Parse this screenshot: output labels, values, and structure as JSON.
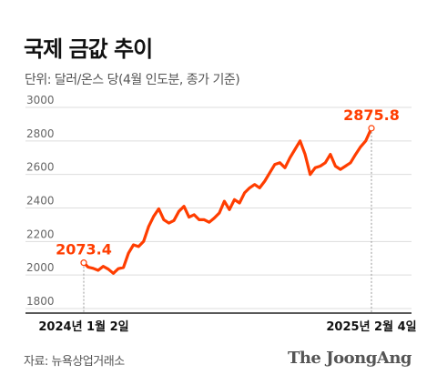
{
  "header": {
    "title": "국제 금값 추이",
    "subtitle": "단위: 달러/온스 당(4월 인도분, 종가 기준)"
  },
  "footer": {
    "source": "자료: 뉴욕상업거래소",
    "brand": "The JoongAng"
  },
  "colors": {
    "line": "#ff3d00",
    "label": "#ff3d00",
    "grid": "#dddddd",
    "axis": "#666666"
  },
  "chart_data": {
    "type": "line",
    "title": "국제 금값 추이",
    "ylim": [
      1800,
      3000
    ],
    "yticks": [
      3000,
      2800,
      2600,
      2400,
      2200,
      2000,
      1800
    ],
    "xlabels": [
      "2024년 1월 2일",
      "2025년 2월 4일"
    ],
    "annotations": [
      {
        "label": "2073.4",
        "date": "2024-01-02",
        "value": 2073.4
      },
      {
        "label": "2875.8",
        "date": "2025-02-04",
        "value": 2875.8
      }
    ],
    "series": [
      {
        "points": [
          [
            "2024-01-02",
            2073.4
          ],
          [
            "2024-01-08",
            2047
          ],
          [
            "2024-01-15",
            2040
          ],
          [
            "2024-01-22",
            2028
          ],
          [
            "2024-01-29",
            2052
          ],
          [
            "2024-02-05",
            2035
          ],
          [
            "2024-02-12",
            2010
          ],
          [
            "2024-02-19",
            2038
          ],
          [
            "2024-02-26",
            2045
          ],
          [
            "2024-03-04",
            2130
          ],
          [
            "2024-03-11",
            2180
          ],
          [
            "2024-03-18",
            2170
          ],
          [
            "2024-03-25",
            2200
          ],
          [
            "2024-04-01",
            2290
          ],
          [
            "2024-04-08",
            2350
          ],
          [
            "2024-04-15",
            2395
          ],
          [
            "2024-04-22",
            2330
          ],
          [
            "2024-04-29",
            2310
          ],
          [
            "2024-05-06",
            2325
          ],
          [
            "2024-05-13",
            2380
          ],
          [
            "2024-05-20",
            2410
          ],
          [
            "2024-05-27",
            2345
          ],
          [
            "2024-06-03",
            2360
          ],
          [
            "2024-06-10",
            2330
          ],
          [
            "2024-06-17",
            2330
          ],
          [
            "2024-06-24",
            2315
          ],
          [
            "2024-07-01",
            2340
          ],
          [
            "2024-07-08",
            2370
          ],
          [
            "2024-07-15",
            2440
          ],
          [
            "2024-07-22",
            2390
          ],
          [
            "2024-07-29",
            2450
          ],
          [
            "2024-08-05",
            2430
          ],
          [
            "2024-08-12",
            2490
          ],
          [
            "2024-08-19",
            2520
          ],
          [
            "2024-08-26",
            2540
          ],
          [
            "2024-09-02",
            2520
          ],
          [
            "2024-09-09",
            2560
          ],
          [
            "2024-09-16",
            2610
          ],
          [
            "2024-09-23",
            2660
          ],
          [
            "2024-09-30",
            2670
          ],
          [
            "2024-10-07",
            2640
          ],
          [
            "2024-10-14",
            2700
          ],
          [
            "2024-10-21",
            2750
          ],
          [
            "2024-10-28",
            2800
          ],
          [
            "2024-11-04",
            2720
          ],
          [
            "2024-11-11",
            2600
          ],
          [
            "2024-11-18",
            2640
          ],
          [
            "2024-11-25",
            2650
          ],
          [
            "2024-12-02",
            2670
          ],
          [
            "2024-12-09",
            2720
          ],
          [
            "2024-12-16",
            2650
          ],
          [
            "2024-12-23",
            2630
          ],
          [
            "2024-12-30",
            2650
          ],
          [
            "2025-01-06",
            2670
          ],
          [
            "2025-01-13",
            2720
          ],
          [
            "2025-01-20",
            2765
          ],
          [
            "2025-01-27",
            2800
          ],
          [
            "2025-02-04",
            2875.8
          ]
        ]
      }
    ]
  }
}
